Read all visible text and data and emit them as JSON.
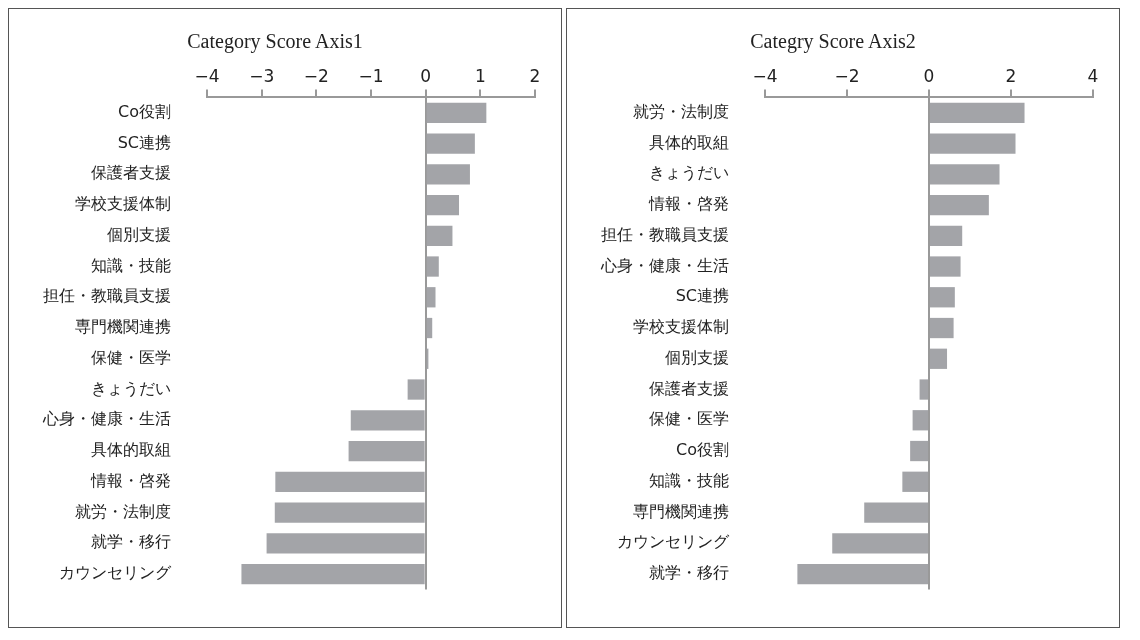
{
  "chart_data": [
    {
      "type": "bar",
      "orientation": "horizontal",
      "title": "Category Score Axis1",
      "categories": [
        "Co役割",
        "SC連携",
        "保護者支援",
        "学校支援体制",
        "個別支援",
        "知識・技能",
        "担任・教職員支援",
        "専門機関連携",
        "保健・医学",
        "きょうだい",
        "心身・健康・生活",
        "具体的取組",
        "情報・啓発",
        "就労・法制度",
        "就学・移行",
        "カウンセリング"
      ],
      "values": [
        1.11,
        0.9,
        0.81,
        0.61,
        0.49,
        0.24,
        0.18,
        0.12,
        0.05,
        -0.33,
        -1.37,
        -1.41,
        -2.75,
        -2.76,
        -2.91,
        -3.37
      ],
      "color": "#a3a4a8",
      "xlim": [
        -4,
        2
      ],
      "xticks": [
        -4,
        -3,
        -2,
        -1,
        0,
        1,
        2
      ]
    },
    {
      "type": "bar",
      "orientation": "horizontal",
      "title": "Categry Score Axis2",
      "categories": [
        "就労・法制度",
        "具体的取組",
        "きょうだい",
        "情報・啓発",
        "担任・教職員支援",
        "心身・健康・生活",
        "SC連携",
        "学校支援体制",
        "個別支援",
        "保護者支援",
        "保健・医学",
        "Co役割",
        "知識・技能",
        "専門機関連携",
        "カウンセリング",
        "就学・移行"
      ],
      "values": [
        2.33,
        2.11,
        1.72,
        1.46,
        0.81,
        0.77,
        0.63,
        0.6,
        0.44,
        -0.23,
        -0.4,
        -0.46,
        -0.65,
        -1.58,
        -2.36,
        -3.21
      ],
      "color": "#a3a4a8",
      "xlim": [
        -4,
        4
      ],
      "xticks": [
        -4,
        -2,
        0,
        2,
        4
      ]
    }
  ]
}
